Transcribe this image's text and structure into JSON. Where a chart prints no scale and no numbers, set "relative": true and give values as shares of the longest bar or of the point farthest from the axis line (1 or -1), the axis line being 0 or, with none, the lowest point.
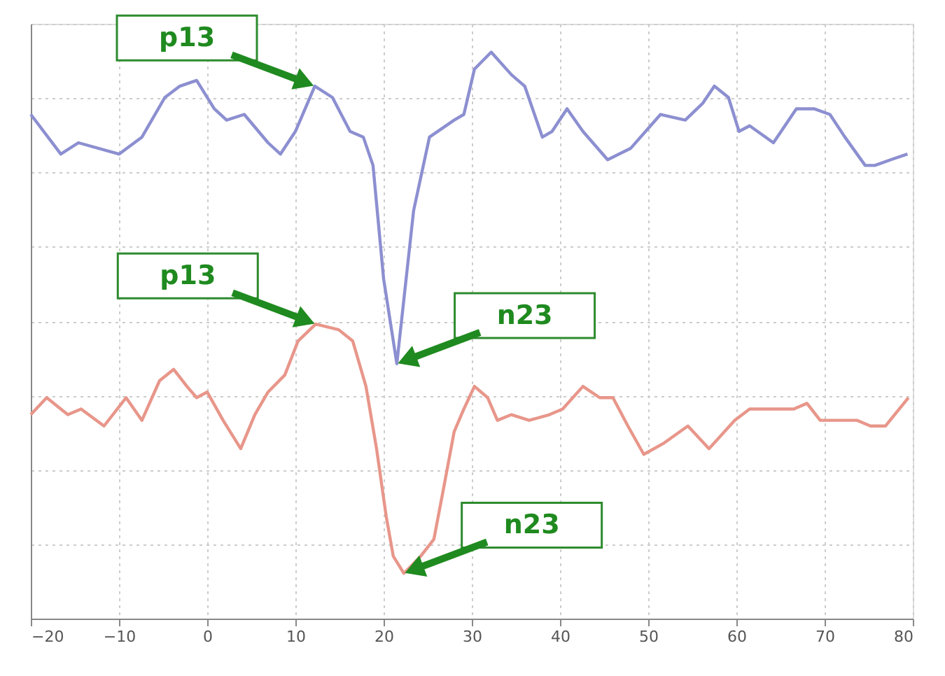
{
  "chart_data": {
    "type": "line",
    "relative": true,
    "xlim": [
      -20,
      80
    ],
    "xticks": [
      -20,
      -10,
      0,
      10,
      20,
      30,
      40,
      50,
      60,
      70,
      80
    ],
    "tick_labels": "x",
    "grid": true,
    "marker": "none",
    "line_style": "solid",
    "series": [
      {
        "color": "#8c8fd0",
        "x": [
          -20,
          -16.6,
          -14.6,
          -10,
          -7.4,
          -4.8,
          -3.1,
          -1.2,
          0.8,
          2.2,
          4.2,
          6.9,
          8.3,
          10,
          12.2,
          14.2,
          16.2,
          17.7,
          18.8,
          20,
          21.5,
          23.4,
          25.2,
          28,
          29.1,
          30.3,
          32.2,
          34.5,
          36,
          38,
          39.1,
          40.8,
          42.6,
          45.4,
          48,
          51.4,
          54.2,
          56.2,
          57.5,
          59.1,
          60.3,
          61.5,
          64.2,
          66.8,
          68.8,
          70.6,
          72.3,
          74.6,
          75.7,
          77.5,
          79.4
        ],
        "values": [
          0.89,
          0.82,
          0.84,
          0.82,
          0.85,
          0.92,
          0.94,
          0.95,
          0.9,
          0.88,
          0.89,
          0.84,
          0.82,
          0.86,
          0.94,
          0.92,
          0.86,
          0.85,
          0.8,
          0.6,
          0.45,
          0.72,
          0.85,
          0.88,
          0.89,
          0.97,
          1,
          0.96,
          0.94,
          0.85,
          0.86,
          0.9,
          0.86,
          0.81,
          0.83,
          0.89,
          0.88,
          0.91,
          0.94,
          0.92,
          0.86,
          0.87,
          0.84,
          0.9,
          0.9,
          0.89,
          0.85,
          0.8,
          0.8,
          0.81,
          0.82
        ]
      },
      {
        "color": "#e8968a",
        "x": [
          -20,
          -18.2,
          -15.8,
          -14.3,
          -11.7,
          -9.2,
          -7.4,
          -5.4,
          -3.8,
          -2.3,
          -1.2,
          0,
          1.8,
          3.8,
          5.4,
          6.9,
          8.8,
          10.3,
          12.3,
          14.9,
          16.5,
          18,
          19.2,
          20.3,
          21.1,
          22.3,
          24.2,
          25.7,
          26.8,
          28,
          29.1,
          30.3,
          31.8,
          32.9,
          34.5,
          36.5,
          38.8,
          40.3,
          42.6,
          44.5,
          46,
          47.7,
          49.5,
          51.8,
          54.5,
          56.9,
          59.8,
          61.5,
          63.4,
          64.9,
          66.5,
          68,
          69.5,
          71.8,
          73.7,
          75.2,
          76.9,
          79.5
        ],
        "values": [
          0.36,
          0.39,
          0.36,
          0.37,
          0.34,
          0.39,
          0.35,
          0.42,
          0.44,
          0.41,
          0.39,
          0.4,
          0.35,
          0.3,
          0.36,
          0.4,
          0.43,
          0.49,
          0.52,
          0.51,
          0.49,
          0.41,
          0.3,
          0.18,
          0.11,
          0.08,
          0.11,
          0.14,
          0.23,
          0.33,
          0.37,
          0.41,
          0.39,
          0.35,
          0.36,
          0.35,
          0.36,
          0.37,
          0.41,
          0.39,
          0.39,
          0.34,
          0.29,
          0.31,
          0.34,
          0.3,
          0.35,
          0.37,
          0.37,
          0.37,
          0.37,
          0.38,
          0.35,
          0.35,
          0.35,
          0.34,
          0.34,
          0.39
        ]
      }
    ],
    "annotations": [
      {
        "text": "p13",
        "x": 12.2,
        "y": 0.94
      },
      {
        "text": "n23",
        "x": 21.5,
        "y": 0.45
      },
      {
        "text": "p13",
        "x": 12.3,
        "y": 0.52
      },
      {
        "text": "n23",
        "x": 22.3,
        "y": 0.08
      }
    ]
  }
}
